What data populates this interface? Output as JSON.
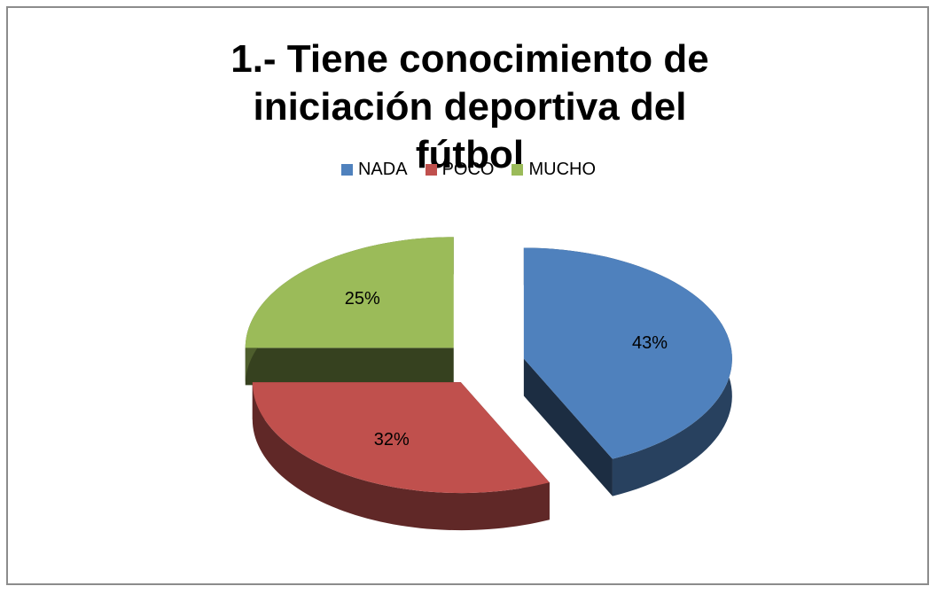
{
  "chart_data": {
    "type": "pie",
    "title": "1.- Tiene conocimiento de iniciación deportiva del fútbol",
    "categories": [
      "NADA",
      "POCO",
      "MUCHO"
    ],
    "values": [
      43,
      32,
      25
    ],
    "value_labels": [
      "43%",
      "32%",
      "25%"
    ],
    "colors": [
      "#4f81bd",
      "#c0504d",
      "#9bbb59"
    ],
    "legend": "top"
  }
}
